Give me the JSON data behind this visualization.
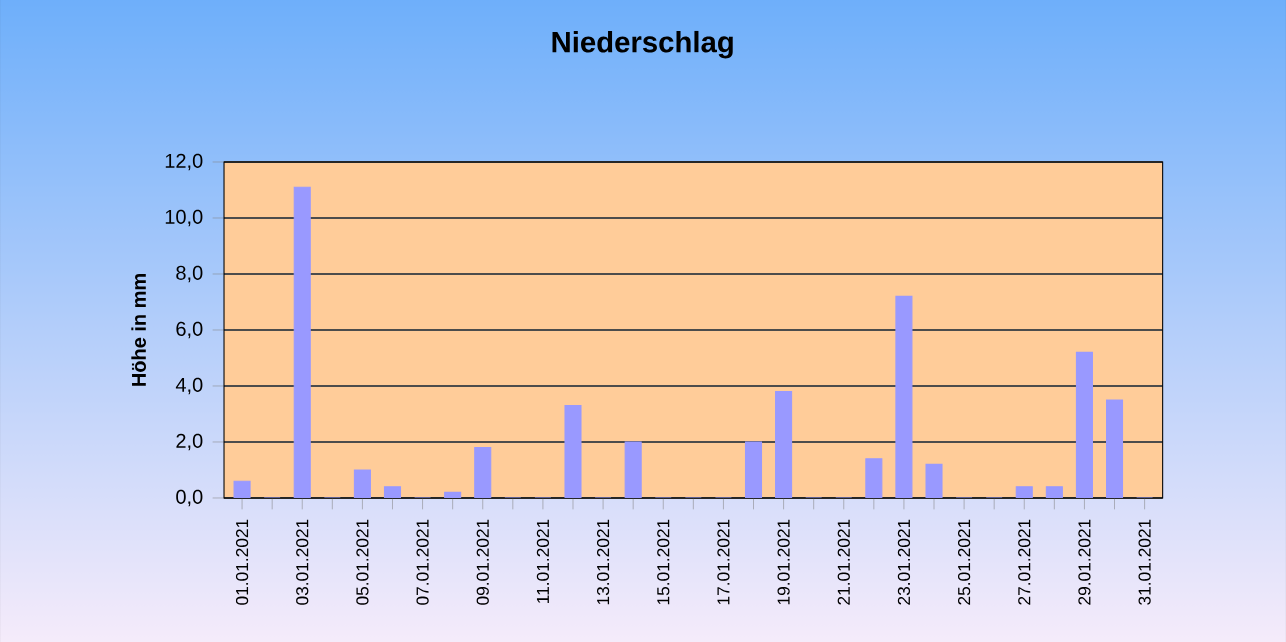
{
  "chart_data": {
    "type": "bar",
    "title": "Niederschlag",
    "ylabel": "Höhe in mm",
    "categories": [
      "01.01.2021",
      null,
      "03.01.2021",
      null,
      "05.01.2021",
      null,
      "07.01.2021",
      null,
      "09.01.2021",
      null,
      "11.01.2021",
      null,
      "13.01.2021",
      null,
      "15.01.2021",
      null,
      "17.01.2021",
      null,
      "19.01.2021",
      null,
      "21.01.2021",
      null,
      "23.01.2021",
      null,
      "25.01.2021",
      null,
      "27.01.2021",
      null,
      "29.01.2021",
      null,
      "31.01.2021"
    ],
    "values": [
      0.6,
      0,
      11.1,
      0,
      1.0,
      0.4,
      0,
      0.2,
      1.8,
      0,
      0,
      3.3,
      0,
      2.0,
      0,
      0,
      0,
      2.0,
      3.8,
      0,
      0,
      1.4,
      7.2,
      1.2,
      0,
      0,
      0.4,
      0.4,
      5.2,
      3.5,
      0
    ],
    "color": "#9999ff",
    "ylim": [
      0,
      12
    ],
    "yticks": [
      {
        "value": 0,
        "label": "0,0"
      },
      {
        "value": 2,
        "label": "2,0"
      },
      {
        "value": 4,
        "label": "4,0"
      },
      {
        "value": 6,
        "label": "6,0"
      },
      {
        "value": 8,
        "label": "8,0"
      },
      {
        "value": 10,
        "label": "10,0"
      },
      {
        "value": 12,
        "label": "12,0"
      }
    ],
    "grid": "y"
  }
}
